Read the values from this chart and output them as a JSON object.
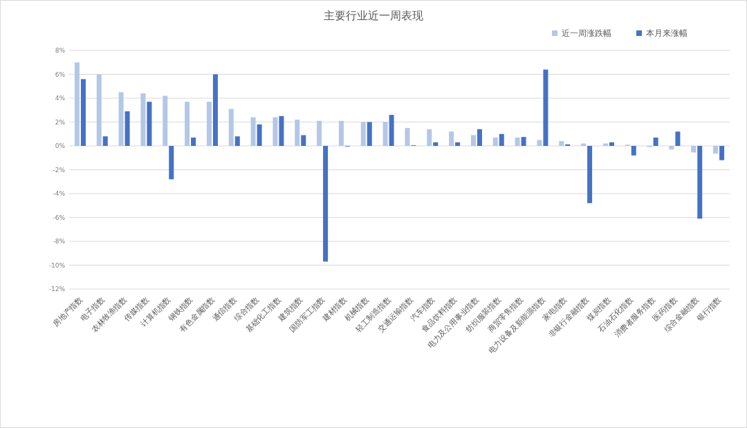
{
  "chart_data": {
    "type": "bar",
    "title": "主要行业近一周表现",
    "categories": [
      "房地产指数",
      "电子指数",
      "农林牧渔指数",
      "传媒指数",
      "计算机指数",
      "钢铁指数",
      "有色金属指数",
      "通信指数",
      "综合指数",
      "基础化工指数",
      "建筑指数",
      "国防军工指数",
      "建材指数",
      "机械指数",
      "轻工制造指数",
      "交通运输指数",
      "汽车指数",
      "食品饮料指数",
      "电力及公用事业指数",
      "纺织服装指数",
      "商贸零售指数",
      "电力设备及新能源指数",
      "家电指数",
      "非银行金融指数",
      "煤炭指数",
      "石油石化指数",
      "消费者服务指数",
      "医药指数",
      "综合金融指数",
      "银行指数"
    ],
    "series": [
      {
        "name": "近一周涨跌幅",
        "color": "#b4c7e7",
        "values": [
          7.0,
          6.0,
          4.5,
          4.4,
          4.2,
          3.7,
          3.7,
          3.1,
          2.4,
          2.4,
          2.2,
          2.1,
          2.1,
          2.0,
          2.0,
          1.5,
          1.4,
          1.2,
          0.9,
          0.7,
          0.7,
          0.5,
          0.4,
          0.2,
          0.2,
          0.1,
          -0.1,
          -0.3,
          -0.55,
          -0.65
        ]
      },
      {
        "name": "本月来涨幅",
        "color": "#4472c4",
        "values": [
          5.6,
          0.8,
          2.9,
          3.7,
          -2.8,
          0.7,
          6.0,
          0.8,
          1.8,
          2.5,
          0.9,
          -9.7,
          -0.05,
          2.0,
          2.6,
          0.05,
          0.3,
          0.3,
          1.4,
          1.0,
          0.75,
          6.4,
          0.13,
          -4.8,
          0.3,
          -0.8,
          0.7,
          1.2,
          -6.1,
          -1.2
        ]
      }
    ],
    "ylim": [
      -12,
      8
    ],
    "yticks": [
      {
        "value": -12,
        "label": "-12%"
      },
      {
        "value": -10,
        "label": "-10%"
      },
      {
        "value": -8,
        "label": "-8%"
      },
      {
        "value": -6,
        "label": "-6%"
      },
      {
        "value": -4,
        "label": "-4%"
      },
      {
        "value": -2,
        "label": "-2%"
      },
      {
        "value": 0,
        "label": "0%"
      },
      {
        "value": 2,
        "label": "2%"
      },
      {
        "value": 4,
        "label": "4%"
      },
      {
        "value": 6,
        "label": "6%"
      },
      {
        "value": 8,
        "label": "8%"
      }
    ],
    "grid": "y",
    "legend": "top right"
  }
}
